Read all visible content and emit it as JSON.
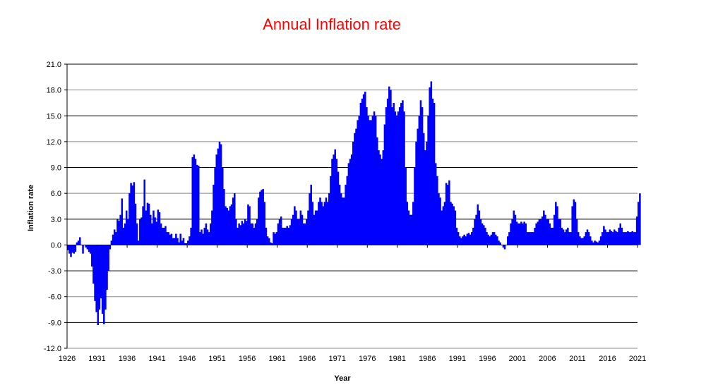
{
  "chart_data": {
    "type": "bar",
    "title": "Annual Inflation rate",
    "xlabel": "Year",
    "ylabel": "Inflation rate",
    "ylim": [
      -12,
      21
    ],
    "yticks": [
      "-12.0",
      "-9.0",
      "-6.0",
      "-3.0",
      "0.0",
      "3.0",
      "6.0",
      "9.0",
      "12.0",
      "15.0",
      "18.0",
      "21.0"
    ],
    "xticks": [
      "1926",
      "1931",
      "1936",
      "1941",
      "1946",
      "1951",
      "1956",
      "1961",
      "1966",
      "1971",
      "1976",
      "1981",
      "1986",
      "1991",
      "1996",
      "2001",
      "2006",
      "2011",
      "2016",
      "2021"
    ],
    "xlim": [
      1926,
      2021.5
    ],
    "grid": true,
    "legend": "none",
    "bar_color": "#0000ff",
    "title_color": "#ff0000",
    "start_year": 1926,
    "step_years": 0.25,
    "values": [
      -0.6,
      -1.0,
      -1.4,
      -0.9,
      -1.0,
      -0.8,
      0.3,
      0.5,
      0.9,
      0.0,
      -1.0,
      0.0,
      -0.3,
      -0.5,
      -0.8,
      -1.0,
      -2.5,
      -4.5,
      -6.5,
      -7.8,
      -9.3,
      -7.5,
      -6.2,
      -8.0,
      -9.2,
      -7.5,
      -5.2,
      -3.0,
      -0.5,
      0.5,
      1.2,
      1.8,
      1.5,
      3.0,
      2.8,
      3.5,
      5.4,
      2.0,
      2.5,
      4.0,
      3.0,
      6.0,
      7.2,
      6.9,
      7.3,
      4.8,
      2.5,
      0.5,
      3.0,
      3.2,
      4.5,
      7.6,
      4.0,
      4.9,
      4.8,
      3.5,
      2.5,
      4.0,
      3.2,
      2.7,
      4.1,
      3.8,
      2.5,
      2.0,
      2.0,
      2.2,
      1.5,
      1.5,
      1.2,
      1.3,
      0.8,
      0.8,
      1.3,
      0.8,
      0.3,
      1.3,
      0.5,
      0.8,
      0.2,
      0.2,
      0.5,
      1.0,
      2.0,
      10.2,
      10.5,
      10.0,
      9.3,
      9.2,
      1.5,
      1.8,
      1.3,
      2.0,
      2.5,
      1.8,
      1.5,
      2.5,
      4.0,
      7.0,
      9.0,
      10.5,
      11.2,
      12.0,
      11.7,
      9.0,
      6.5,
      4.5,
      4.3,
      4.0,
      4.5,
      4.7,
      5.5,
      6.0,
      3.0,
      2.0,
      2.5,
      2.3,
      2.8,
      2.5,
      3.0,
      2.8,
      4.7,
      4.5,
      2.5,
      2.5,
      2.0,
      2.5,
      3.0,
      5.5,
      6.2,
      6.4,
      6.5,
      5.0,
      2.0,
      1.0,
      0.8,
      0.3,
      0.2,
      1.5,
      1.3,
      1.5,
      2.5,
      3.0,
      3.3,
      2.0,
      2.0,
      2.0,
      2.2,
      2.0,
      2.3,
      3.0,
      3.5,
      4.5,
      4.0,
      3.0,
      3.0,
      4.0,
      3.5,
      2.5,
      2.5,
      3.0,
      4.0,
      6.0,
      7.0,
      5.0,
      3.5,
      4.0,
      4.0,
      5.0,
      5.5,
      5.0,
      4.5,
      5.0,
      5.5,
      5.0,
      6.0,
      8.0,
      10.0,
      10.5,
      11.1,
      10.0,
      8.5,
      7.0,
      6.0,
      5.5,
      5.5,
      7.0,
      8.0,
      9.5,
      10.0,
      10.5,
      12.0,
      13.0,
      13.5,
      14.5,
      15.0,
      16.5,
      17.0,
      17.5,
      17.8,
      16.0,
      15.0,
      14.5,
      14.5,
      15.0,
      15.5,
      15.0,
      12.5,
      11.0,
      10.5,
      10.0,
      11.0,
      14.0,
      16.0,
      17.0,
      18.4,
      18.0,
      16.0,
      16.5,
      15.5,
      15.0,
      15.5,
      16.0,
      16.5,
      16.8,
      15.5,
      9.0,
      5.0,
      4.0,
      3.5,
      3.5,
      5.0,
      9.0,
      12.0,
      13.5,
      15.0,
      16.8,
      16.0,
      13.0,
      11.0,
      12.0,
      15.0,
      18.3,
      19.0,
      17.0,
      16.5,
      9.5,
      8.0,
      6.0,
      5.5,
      4.0,
      4.5,
      5.0,
      7.2,
      7.0,
      7.5,
      5.0,
      4.8,
      4.5,
      4.0,
      2.0,
      1.5,
      1.0,
      0.8,
      1.0,
      1.2,
      1.0,
      1.3,
      1.4,
      1.2,
      1.5,
      2.0,
      3.0,
      3.5,
      4.7,
      4.0,
      3.0,
      2.5,
      2.3,
      2.0,
      1.5,
      1.2,
      1.0,
      1.2,
      1.5,
      1.5,
      1.2,
      1.0,
      0.5,
      0.3,
      0.0,
      -0.3,
      -0.5,
      0.0,
      1.0,
      1.5,
      2.5,
      3.0,
      4.0,
      3.5,
      2.7,
      2.5,
      2.5,
      2.7,
      2.5,
      2.7,
      2.5,
      1.5,
      1.5,
      1.5,
      1.5,
      1.5,
      2.0,
      2.5,
      2.7,
      3.0,
      3.0,
      3.3,
      4.0,
      3.5,
      3.0,
      3.0,
      2.5,
      2.0,
      2.0,
      3.5,
      5.0,
      4.5,
      3.0,
      3.0,
      2.0,
      1.8,
      1.5,
      1.8,
      2.0,
      1.5,
      1.5,
      4.5,
      5.3,
      5.0,
      3.0,
      1.5,
      1.0,
      0.8,
      0.8,
      1.0,
      1.5,
      1.8,
      1.5,
      1.0,
      0.5,
      0.3,
      0.5,
      0.4,
      0.3,
      0.5,
      1.0,
      1.5,
      2.2,
      1.8,
      1.5,
      1.5,
      1.8,
      1.6,
      1.5,
      1.8,
      1.6,
      1.5,
      2.0,
      2.5,
      2.0,
      1.5,
      1.5,
      1.5,
      1.6,
      1.5,
      1.5,
      1.6,
      1.5,
      1.5,
      3.3,
      5.0,
      6.0
    ]
  }
}
